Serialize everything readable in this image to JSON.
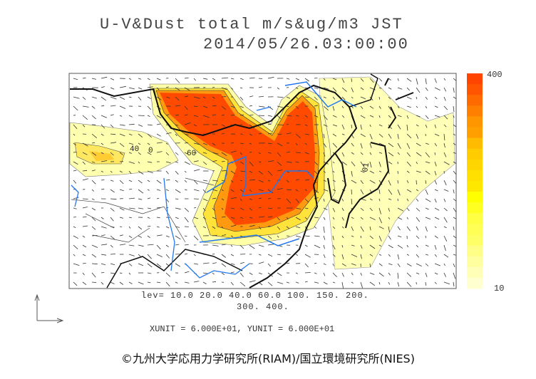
{
  "title": {
    "line1": "U-V&Dust total m/s&ug/m3 JST",
    "line2": "2014/05/26.03:00:00"
  },
  "colorbar": {
    "max_label": "400",
    "min_label": "10",
    "colors": [
      "#ff4400",
      "#ff5500",
      "#ff6a00",
      "#ff7f00",
      "#ff9600",
      "#ffa000",
      "#ffbb00",
      "#ffcc00",
      "#ffd500",
      "#ffe000",
      "#ffe800",
      "#ffff00",
      "#ffff22",
      "#ffff44",
      "#ffff55",
      "#ffff66",
      "#ffff88",
      "#ffffa0",
      "#ffffb8",
      "#ffffd0"
    ]
  },
  "levels": {
    "line1": "lev= 10.0 20.0 40.0 60.0 100. 150. 200.",
    "line2": "300. 400."
  },
  "units": "XUNIT = 6.000E+01, YUNIT = 6.000E+01",
  "contour_labels": [
    "40",
    "0",
    "60",
    "01"
  ],
  "credit": "©九州大学応用力学研究所(RIAM)/国立環境研究所(NIES)",
  "colors": {
    "high": "#ff4400",
    "mid": "#ffcc00",
    "low": "#ffffb0",
    "rivers": "#2277ee",
    "coast": "#111111"
  }
}
